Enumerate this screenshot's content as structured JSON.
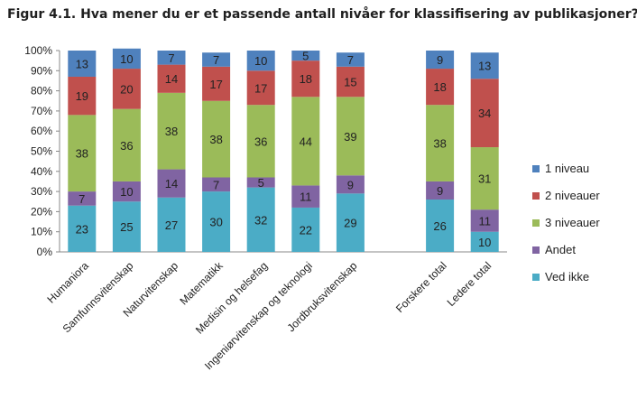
{
  "chart_data": {
    "type": "bar",
    "stacked": true,
    "percent": true,
    "title": "Figur 4.1. Hva mener du er et passende antall nivåer for klassifisering av publikasjoner?",
    "categories": [
      "Humaniora",
      "Samfunnsvitenskap",
      "Naturvitenskap",
      "Matematikk",
      "Medisin og helsefag",
      "Ingeniørvitenskap og teknologi",
      "Jordbruksvitenskap",
      "",
      "Forskere total",
      "Ledere total"
    ],
    "series": [
      {
        "name": "Ved ikke",
        "color": "#4bacc6",
        "values": [
          23,
          25,
          27,
          30,
          32,
          22,
          29,
          null,
          26,
          10
        ]
      },
      {
        "name": "Andet",
        "color": "#8064a2",
        "values": [
          7,
          10,
          14,
          7,
          5,
          11,
          9,
          null,
          9,
          11
        ]
      },
      {
        "name": "3 niveauer",
        "color": "#9bbb59",
        "values": [
          38,
          36,
          38,
          38,
          36,
          44,
          39,
          null,
          38,
          31
        ]
      },
      {
        "name": "2 niveauer",
        "color": "#c0504d",
        "values": [
          19,
          20,
          14,
          17,
          17,
          18,
          15,
          null,
          18,
          34
        ]
      },
      {
        "name": "1 niveau",
        "color": "#4f81bd",
        "values": [
          13,
          10,
          7,
          7,
          10,
          5,
          7,
          null,
          9,
          13
        ]
      }
    ],
    "legend_order": [
      "1 niveau",
      "2 niveauer",
      "3 niveauer",
      "Andet",
      "Ved ikke"
    ],
    "legend_position": "right",
    "yticks": [
      "0%",
      "10%",
      "20%",
      "30%",
      "40%",
      "50%",
      "60%",
      "70%",
      "80%",
      "90%",
      "100%"
    ],
    "ylim": [
      0,
      100
    ],
    "grid": false
  }
}
